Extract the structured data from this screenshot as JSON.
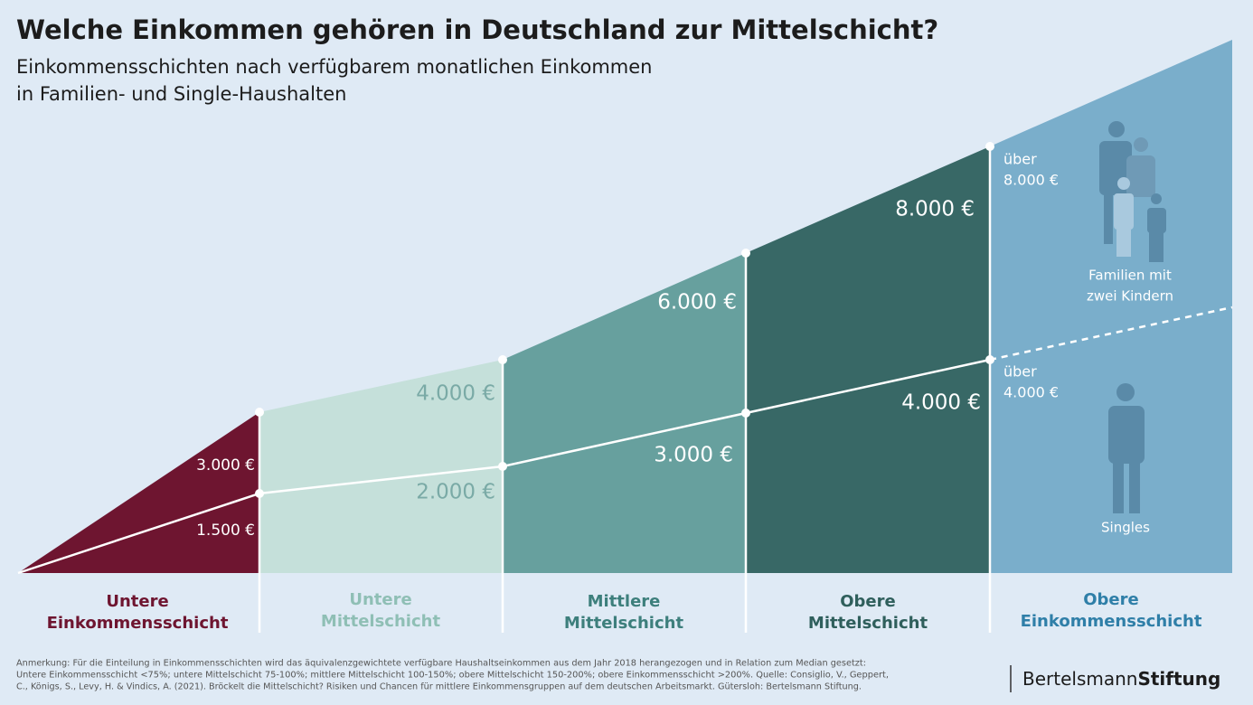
{
  "header": {
    "title": "Welche Einkommen gehören in Deutschland zur Mittelschicht?",
    "subtitle": [
      "Einkommensschichten nach verfügbarem monatlichen Einkommen",
      "in Familien- und Single-Haushalten"
    ]
  },
  "thresholds": {
    "family": [
      "3.000 €",
      "4.000 €",
      "6.000 €",
      "8.000 €"
    ],
    "single": [
      "1.500 €",
      "2.000 €",
      "3.000 €",
      "4.000 €"
    ],
    "top_family": [
      "über",
      "8.000 €"
    ],
    "top_single": [
      "über",
      "4.000 €"
    ]
  },
  "groups": [
    {
      "label": [
        "Untere",
        "Einkommensschicht"
      ]
    },
    {
      "label": [
        "Untere",
        "Mittelschicht"
      ]
    },
    {
      "label": [
        "Mittlere",
        "Mittelschicht"
      ]
    },
    {
      "label": [
        "Obere",
        "Mittelschicht"
      ]
    },
    {
      "label": [
        "Obere",
        "Einkommensschicht"
      ]
    }
  ],
  "icons": {
    "families": [
      "Familien mit",
      "zwei Kindern"
    ],
    "singles": "Singles"
  },
  "note": [
    "Anmerkung: Für die Einteilung in Einkommensschichten wird das äquivalenzgewichtete verfügbare Haushaltseinkommen aus dem Jahr 2018 herangezogen und in Relation zum Median gesetzt:",
    "Untere Einkommensschicht <75%; untere Mittelschicht 75-100%; mittlere Mittelschicht 100-150%; obere Mittelschicht 150-200%; obere Einkommensschicht >200%. Quelle: Consiglio, V., Geppert,",
    "C., Königs, S., Levy, H. & Vindics, A. (2021). Bröckelt die Mittelschicht? Risiken und Chancen für mittlere Einkommensgruppen auf dem deutschen Arbeitsmarkt. Gütersloh: Bertelsmann Stiftung."
  ],
  "logo": [
    "Bertelsmann",
    "Stiftung"
  ]
}
